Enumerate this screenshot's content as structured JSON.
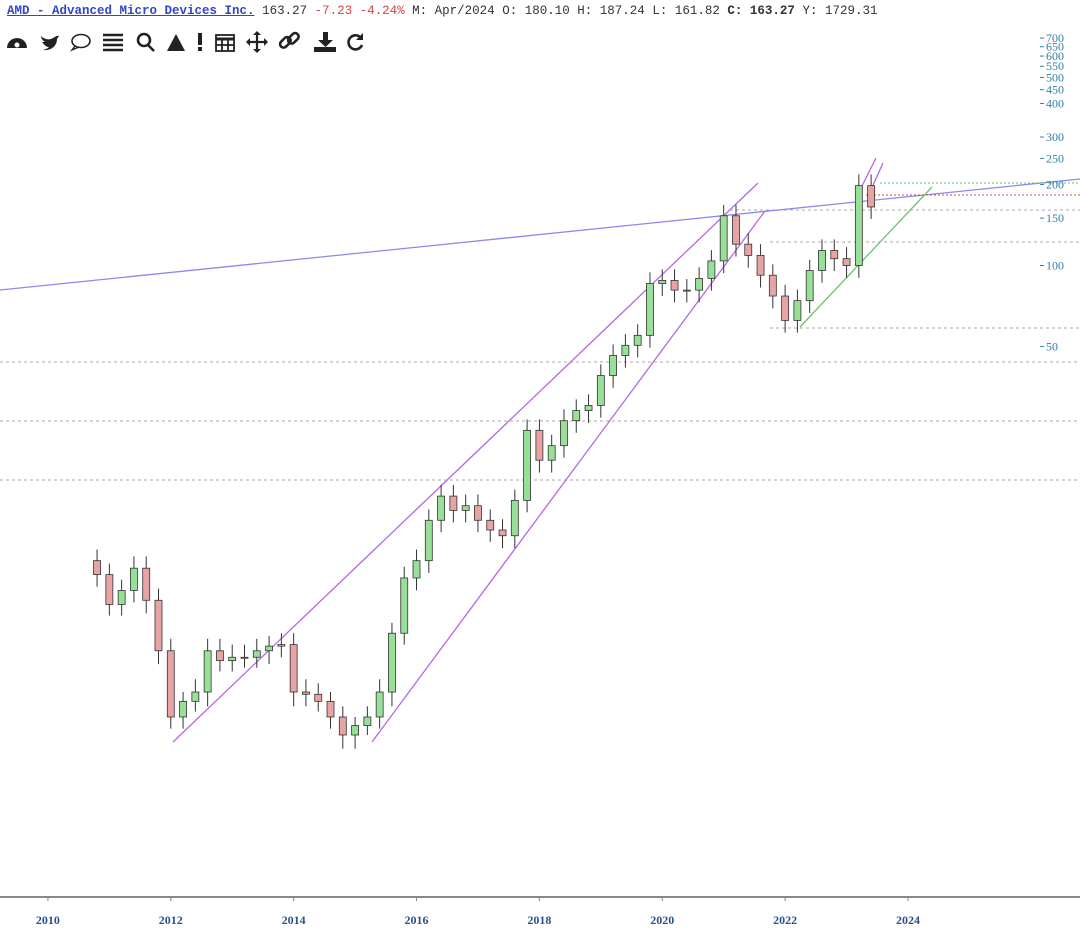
{
  "header": {
    "symbol": "AMD - Advanced Micro Devices Inc.",
    "last": "163.27",
    "change": "-7.23",
    "change_pct": "-4.24%",
    "period": "M: Apr/2024",
    "fields": [
      {
        "label": "O:",
        "value": "180.10"
      },
      {
        "label": "H:",
        "value": "187.24"
      },
      {
        "label": "L:",
        "value": "161.82"
      },
      {
        "label": "C:",
        "value": "163.27"
      },
      {
        "label": "Y:",
        "value": "1729.31"
      }
    ]
  },
  "chart_data": {
    "type": "candlestick",
    "log_scale": true,
    "up_color": "#98df98",
    "down_color": "#e8a4a4",
    "xlim": [
      2009.22,
      2026.8
    ],
    "xticks": [
      2010,
      2012,
      2014,
      2016,
      2018,
      2020,
      2022,
      2024
    ],
    "ylim": [
      0.45,
      750
    ],
    "yticks": [
      50,
      100,
      150,
      200,
      250,
      300,
      400,
      450,
      500,
      550,
      600,
      650,
      700
    ],
    "x": [
      2010.8,
      2011,
      2011.2,
      2011.4,
      2011.6,
      2011.8,
      2012,
      2012.2,
      2012.4,
      2012.6,
      2012.8,
      2013,
      2013.2,
      2013.4,
      2013.6,
      2013.8,
      2014,
      2014.2,
      2014.4,
      2014.6,
      2014.8,
      2015,
      2015.2,
      2015.4,
      2015.6,
      2015.8,
      2016,
      2016.2,
      2016.4,
      2016.6,
      2016.8,
      2017,
      2017.2,
      2017.4,
      2017.6,
      2017.8,
      2018,
      2018.2,
      2018.4,
      2018.6,
      2018.8,
      2019,
      2019.2,
      2019.4,
      2019.6,
      2019.8,
      2020,
      2020.2,
      2020.4,
      2020.6,
      2020.8,
      2021,
      2021.2,
      2021.4,
      2021.6,
      2021.8,
      2022,
      2022.2,
      2022.4,
      2022.6,
      2022.8,
      2023,
      2023.2,
      2023.4
    ],
    "open": [
      8.0,
      7.1,
      5.5,
      6.2,
      7.5,
      5.7,
      3.7,
      2.1,
      2.4,
      2.6,
      3.7,
      3.4,
      3.5,
      3.5,
      3.7,
      3.85,
      3.9,
      2.6,
      2.55,
      2.4,
      2.1,
      1.8,
      1.95,
      2.1,
      2.6,
      4.3,
      6.9,
      8.0,
      11.3,
      13.9,
      12.3,
      12.8,
      11.3,
      10.4,
      9.9,
      13.4,
      24.4,
      18.9,
      21.4,
      26.5,
      28.9,
      30.2,
      39,
      46.3,
      50.5,
      55,
      85.7,
      88,
      81,
      81,
      89.5,
      104,
      153,
      120,
      109,
      92,
      77,
      62.5,
      74,
      95.8,
      113.7,
      106,
      100,
      198
    ],
    "high": [
      8.8,
      7.8,
      6.8,
      8.3,
      8.3,
      6.3,
      4.1,
      2.6,
      2.9,
      4.1,
      4.1,
      3.9,
      3.9,
      4.1,
      4.2,
      4.3,
      4.3,
      2.9,
      2.8,
      2.6,
      2.3,
      2.1,
      2.3,
      2.9,
      4.7,
      7.6,
      8.8,
      12.4,
      15.3,
      15.3,
      14.1,
      14.1,
      12.4,
      11.4,
      14.7,
      26.8,
      26.8,
      23.5,
      29.2,
      31.8,
      33.2,
      42.9,
      50.9,
      55.6,
      60.5,
      94.3,
      96.8,
      96.8,
      89.1,
      98.5,
      114,
      168,
      168,
      132,
      120,
      101,
      84.7,
      81.4,
      105,
      125,
      125,
      117,
      218,
      218
    ],
    "low": [
      6.4,
      5.0,
      5.0,
      5.6,
      5.1,
      3.3,
      1.9,
      1.9,
      2.2,
      2.3,
      3.1,
      3.1,
      3.2,
      3.2,
      3.3,
      3.5,
      2.3,
      2.3,
      2.2,
      1.9,
      1.6,
      1.6,
      1.8,
      1.9,
      2.3,
      3.9,
      6.2,
      7.2,
      10.2,
      11.1,
      11.1,
      10.2,
      9.4,
      8.9,
      8.9,
      12.1,
      17,
      17,
      19.3,
      23.9,
      26,
      27.2,
      35.1,
      41.7,
      45.5,
      49.5,
      77.1,
      72.9,
      72.9,
      72.9,
      80.6,
      93.6,
      108,
      98.1,
      82.8,
      69.3,
      56.3,
      56.3,
      66.6,
      86.2,
      95.4,
      90,
      90,
      149
    ],
    "close": [
      7.1,
      5.5,
      6.2,
      7.5,
      5.7,
      3.7,
      2.1,
      2.4,
      2.6,
      3.7,
      3.4,
      3.5,
      3.5,
      3.7,
      3.85,
      3.9,
      2.6,
      2.55,
      2.4,
      2.1,
      1.8,
      1.95,
      2.1,
      2.6,
      4.3,
      6.9,
      8.0,
      11.3,
      13.9,
      12.3,
      12.8,
      11.3,
      10.4,
      9.9,
      13.4,
      24.4,
      18.9,
      21.4,
      26.5,
      28.9,
      30.2,
      39,
      46.3,
      50.5,
      55,
      85.7,
      88,
      81,
      81,
      89.5,
      104,
      153,
      120,
      109,
      92,
      77,
      62.5,
      74,
      95.8,
      113.7,
      106,
      100,
      198,
      165
    ]
  }
}
